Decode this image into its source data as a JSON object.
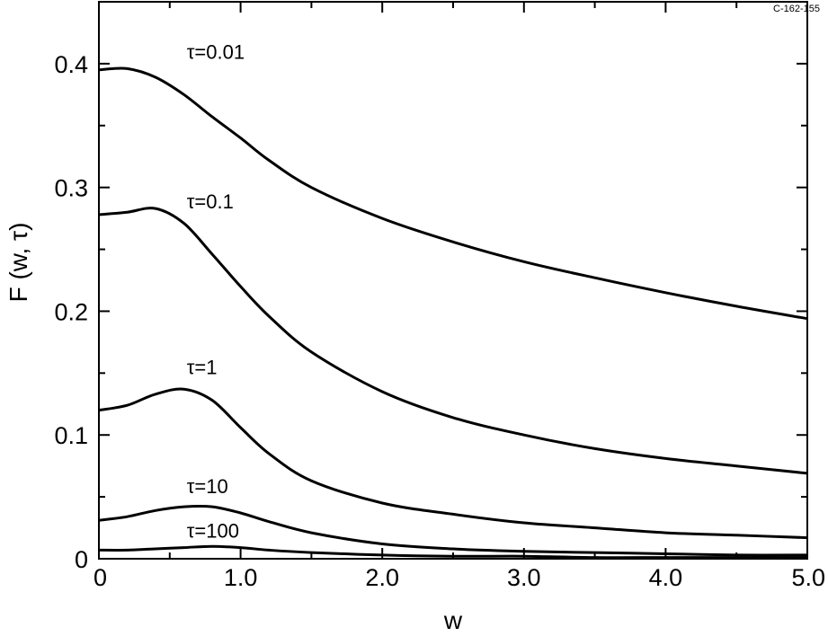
{
  "figure_id": "C-162-155",
  "chart_data": {
    "type": "line",
    "xlabel": "w",
    "ylabel": "F (w, τ)",
    "xlim": [
      0,
      5.0
    ],
    "ylim": [
      0,
      0.45
    ],
    "x_ticks": [
      {
        "value": 0,
        "label": "0"
      },
      {
        "value": 1.0,
        "label": "1.0"
      },
      {
        "value": 2.0,
        "label": "2.0"
      },
      {
        "value": 3.0,
        "label": "3.0"
      },
      {
        "value": 4.0,
        "label": "4.0"
      },
      {
        "value": 5.0,
        "label": "5.0"
      }
    ],
    "y_ticks": [
      {
        "value": 0,
        "label": "0"
      },
      {
        "value": 0.1,
        "label": "0.1"
      },
      {
        "value": 0.2,
        "label": "0.2"
      },
      {
        "value": 0.3,
        "label": "0.3"
      },
      {
        "value": 0.4,
        "label": "0.4"
      }
    ],
    "grid": false,
    "legend": "none",
    "x": [
      0,
      0.2,
      0.4,
      0.6,
      0.8,
      1.0,
      1.2,
      1.5,
      2.0,
      2.5,
      3.0,
      3.5,
      4.0,
      4.5,
      5.0
    ],
    "series": [
      {
        "label": "τ=0.01",
        "label_at": [
          0.62,
          0.404
        ],
        "values": [
          0.395,
          0.396,
          0.389,
          0.375,
          0.357,
          0.34,
          0.322,
          0.3,
          0.275,
          0.256,
          0.24,
          0.227,
          0.215,
          0.204,
          0.194
        ]
      },
      {
        "label": "τ=0.1",
        "label_at": [
          0.62,
          0.283
        ],
        "values": [
          0.278,
          0.28,
          0.283,
          0.271,
          0.246,
          0.22,
          0.196,
          0.167,
          0.135,
          0.114,
          0.1,
          0.089,
          0.081,
          0.075,
          0.069
        ]
      },
      {
        "label": "τ=1",
        "label_at": [
          0.62,
          0.149
        ],
        "values": [
          0.12,
          0.124,
          0.133,
          0.137,
          0.128,
          0.106,
          0.085,
          0.063,
          0.045,
          0.036,
          0.029,
          0.025,
          0.021,
          0.019,
          0.017
        ]
      },
      {
        "label": "τ=10",
        "label_at": [
          0.62,
          0.053
        ],
        "values": [
          0.031,
          0.034,
          0.039,
          0.042,
          0.042,
          0.037,
          0.03,
          0.021,
          0.012,
          0.008,
          0.006,
          0.005,
          0.004,
          0.003,
          0.003
        ]
      },
      {
        "label": "τ=100",
        "label_at": [
          0.62,
          0.017
        ],
        "values": [
          0.007,
          0.007,
          0.008,
          0.009,
          0.01,
          0.009,
          0.007,
          0.005,
          0.003,
          0.002,
          0.002,
          0.001,
          0.001,
          0.001,
          0.001
        ]
      }
    ]
  }
}
